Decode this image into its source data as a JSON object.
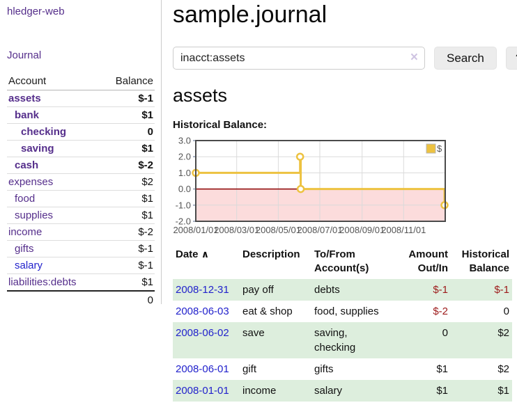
{
  "theme": {
    "purple": "#552E8B",
    "blue": "#2222CC",
    "neg_strong": "#9d1a1a",
    "neg_muted": "#b87676",
    "stripe_green": "#ddeedd"
  },
  "app": {
    "brand": "hledger-web",
    "nav": {
      "journal": "Journal"
    }
  },
  "sidebar": {
    "header": {
      "account": "Account",
      "balance": "Balance"
    },
    "accounts": [
      {
        "name": "assets",
        "level": 1,
        "balance": "$-1",
        "bold": true
      },
      {
        "name": "bank",
        "level": 2,
        "balance": "$1",
        "bold": true
      },
      {
        "name": "checking",
        "level": 3,
        "balance": "0",
        "bold": true
      },
      {
        "name": "saving",
        "level": 3,
        "balance": "$1",
        "bold": true
      },
      {
        "name": "cash",
        "level": 2,
        "balance": "$-2",
        "bold": true
      },
      {
        "name": "expenses",
        "level": 1,
        "balance": "$2",
        "bold": false
      },
      {
        "name": "food",
        "level": 2,
        "balance": "$1",
        "bold": false
      },
      {
        "name": "supplies",
        "level": 2,
        "balance": "$1",
        "bold": false
      },
      {
        "name": "income",
        "level": 1,
        "balance": "$-2",
        "bold": false
      },
      {
        "name": "gifts",
        "level": 2,
        "balance": "$-1",
        "bold": false
      },
      {
        "name": "salary",
        "level": 2,
        "balance": "$-1",
        "bold": false,
        "link_state": "unvisited"
      },
      {
        "name": "liabilities:debts",
        "level": 1,
        "balance": "$1",
        "bold": false
      }
    ],
    "total": "0"
  },
  "main": {
    "title": "sample.journal",
    "search": {
      "value": "inacct:assets",
      "clear_glyph": "×",
      "button_label": "Search",
      "help_label": "?"
    },
    "account_heading": "assets",
    "chart_label": "Historical Balance:"
  },
  "chart_data": {
    "type": "line",
    "title": "Historical Balance: assets",
    "step": true,
    "series": [
      {
        "name": "$",
        "x": [
          "2008-01-01",
          "2008-06-02",
          "2008-06-03",
          "2008-12-31"
        ],
        "y": [
          1,
          2,
          0,
          -1
        ],
        "color": "#EDC240"
      }
    ],
    "xlim": [
      "2008-01-01",
      "2009-01-01"
    ],
    "ylim": [
      -2,
      3
    ],
    "ytick_labels": [
      "3.0",
      "2.0",
      "1.0",
      "0.0",
      "-1.0",
      "-2.0"
    ],
    "ytick_values": [
      3,
      2,
      1,
      0,
      -1,
      -2
    ],
    "xtick_labels": [
      "2008/01/01",
      "2008/03/01",
      "2008/05/01",
      "2008/07/01",
      "2008/09/01",
      "2008/11/01"
    ],
    "xtick_dates": [
      "2008-01-01",
      "2008-03-01",
      "2008-05-01",
      "2008-07-01",
      "2008-09-01",
      "2008-11-01"
    ],
    "grid": true,
    "legend": {
      "label": "$",
      "position": "top-right"
    },
    "colors": {
      "series": "#EDC240",
      "marker_fill": "#ffffff",
      "negative_region": "#fcdcdc",
      "zero_line": "#8b0000",
      "grid": "#dadada",
      "border": "#4a4a4a",
      "tick_label": "#545454"
    }
  },
  "register": {
    "columns": {
      "date": "Date",
      "description": "Description",
      "accounts": "To/From Account(s)",
      "amount": "Amount Out/In",
      "balance": "Historical Balance"
    },
    "sort_glyph": "∧",
    "rows": [
      {
        "date": "2008-12-31",
        "description": "pay off",
        "accounts": "debts",
        "amount": "$-1",
        "balance": "$-1"
      },
      {
        "date": "2008-06-03",
        "description": "eat & shop",
        "accounts": "food, supplies",
        "amount": "$-2",
        "balance": "0"
      },
      {
        "date": "2008-06-02",
        "description": "save",
        "accounts": "saving, checking",
        "amount": "0",
        "balance": "$2"
      },
      {
        "date": "2008-06-01",
        "description": "gift",
        "accounts": "gifts",
        "amount": "$1",
        "balance": "$2"
      },
      {
        "date": "2008-01-01",
        "description": "income",
        "accounts": "salary",
        "amount": "$1",
        "balance": "$1"
      }
    ]
  }
}
